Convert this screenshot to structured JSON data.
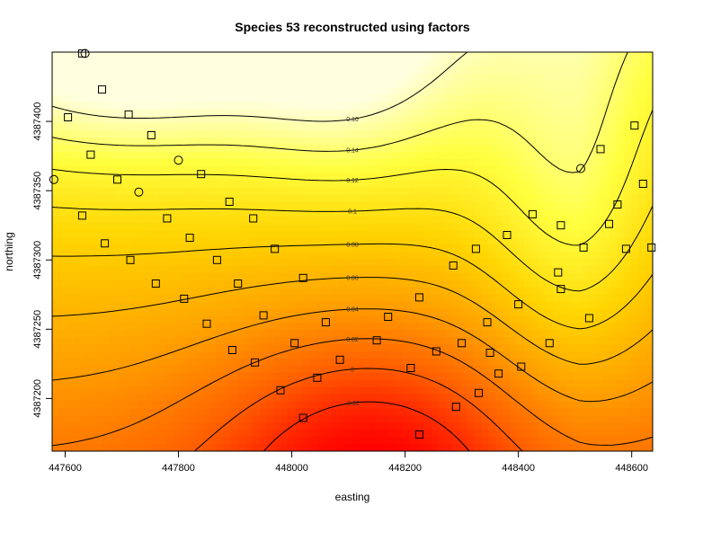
{
  "chart_data": {
    "type": "heatmap",
    "title": "Species 53 reconstructed using factors",
    "xlabel": "easting",
    "ylabel": "northing",
    "xlim": [
      447577,
      448637
    ],
    "ylim": [
      4387162,
      4387450
    ],
    "x_ticks": [
      447600,
      447800,
      448000,
      448200,
      448400,
      448600
    ],
    "y_ticks": [
      4387200,
      4387250,
      4387300,
      4387350,
      4387400
    ],
    "x_tick_labels": [
      "447600",
      "447800",
      "448000",
      "448200",
      "448400",
      "448600"
    ],
    "y_tick_labels": [
      "4387200",
      "4387250",
      "4387300",
      "4387350",
      "4387400"
    ],
    "color_scale": "heat (red = low, yellow = mid, pale yellow = high)",
    "color_stops": [
      "#ff0000",
      "#ff6000",
      "#ffa000",
      "#ffd400",
      "#ffff40",
      "#ffffe0"
    ],
    "value_range": [
      -0.04,
      0.17
    ],
    "contours": [
      {
        "level": -0.04,
        "label": "-0.04"
      },
      {
        "level": -0.02,
        "label": "-0.02"
      },
      {
        "level": 0,
        "label": "0"
      },
      {
        "level": 0.02,
        "label": "0.02"
      },
      {
        "level": 0.04,
        "label": "0.04"
      },
      {
        "level": 0.06,
        "label": "0.06"
      },
      {
        "level": 0.08,
        "label": "0.08"
      },
      {
        "level": 0.1,
        "label": "0.1"
      },
      {
        "level": 0.12,
        "label": "0.12"
      },
      {
        "level": 0.14,
        "label": "0.14"
      },
      {
        "level": 0.16,
        "label": "0.16"
      }
    ],
    "sample_points": {
      "squares": [
        [
          447630,
          4387449
        ],
        [
          447665,
          4387423
        ],
        [
          447605,
          4387403
        ],
        [
          447712,
          4387405
        ],
        [
          447752,
          4387390
        ],
        [
          447645,
          4387376
        ],
        [
          447692,
          4387358
        ],
        [
          447840,
          4387362
        ],
        [
          447630,
          4387332
        ],
        [
          447890,
          4387342
        ],
        [
          447780,
          4387330
        ],
        [
          447670,
          4387312
        ],
        [
          447932,
          4387330
        ],
        [
          447820,
          4387316
        ],
        [
          447715,
          4387300
        ],
        [
          447970,
          4387308
        ],
        [
          447868,
          4387300
        ],
        [
          447760,
          4387283
        ],
        [
          447905,
          4387283
        ],
        [
          448020,
          4387287
        ],
        [
          447810,
          4387272
        ],
        [
          447950,
          4387260
        ],
        [
          448060,
          4387255
        ],
        [
          447850,
          4387254
        ],
        [
          448005,
          4387240
        ],
        [
          448170,
          4387259
        ],
        [
          447895,
          4387235
        ],
        [
          448085,
          4387228
        ],
        [
          447935,
          4387226
        ],
        [
          448045,
          4387215
        ],
        [
          448210,
          4387222
        ],
        [
          447980,
          4387206
        ],
        [
          448150,
          4387242
        ],
        [
          448225,
          4387273
        ],
        [
          448255,
          4387234
        ],
        [
          448300,
          4387240
        ],
        [
          448285,
          4387296
        ],
        [
          448325,
          4387308
        ],
        [
          448350,
          4387233
        ],
        [
          448380,
          4387318
        ],
        [
          448345,
          4387255
        ],
        [
          448365,
          4387218
        ],
        [
          448400,
          4387268
        ],
        [
          448425,
          4387333
        ],
        [
          448470,
          4387291
        ],
        [
          448455,
          4387240
        ],
        [
          448515,
          4387309
        ],
        [
          448475,
          4387325
        ],
        [
          448525,
          4387258
        ],
        [
          448560,
          4387326
        ],
        [
          448545,
          4387380
        ],
        [
          448590,
          4387308
        ],
        [
          448605,
          4387397
        ],
        [
          448620,
          4387355
        ],
        [
          448575,
          4387340
        ],
        [
          448635,
          4387309
        ],
        [
          448405,
          4387223
        ],
        [
          448475,
          4387279
        ],
        [
          448330,
          4387204
        ],
        [
          448290,
          4387194
        ],
        [
          448020,
          4387186
        ],
        [
          448225,
          4387174
        ]
      ],
      "circles": [
        [
          447580,
          4387358
        ],
        [
          447730,
          4387349
        ],
        [
          447800,
          4387372
        ],
        [
          448510,
          4387366
        ],
        [
          447635,
          4387449
        ]
      ]
    }
  }
}
